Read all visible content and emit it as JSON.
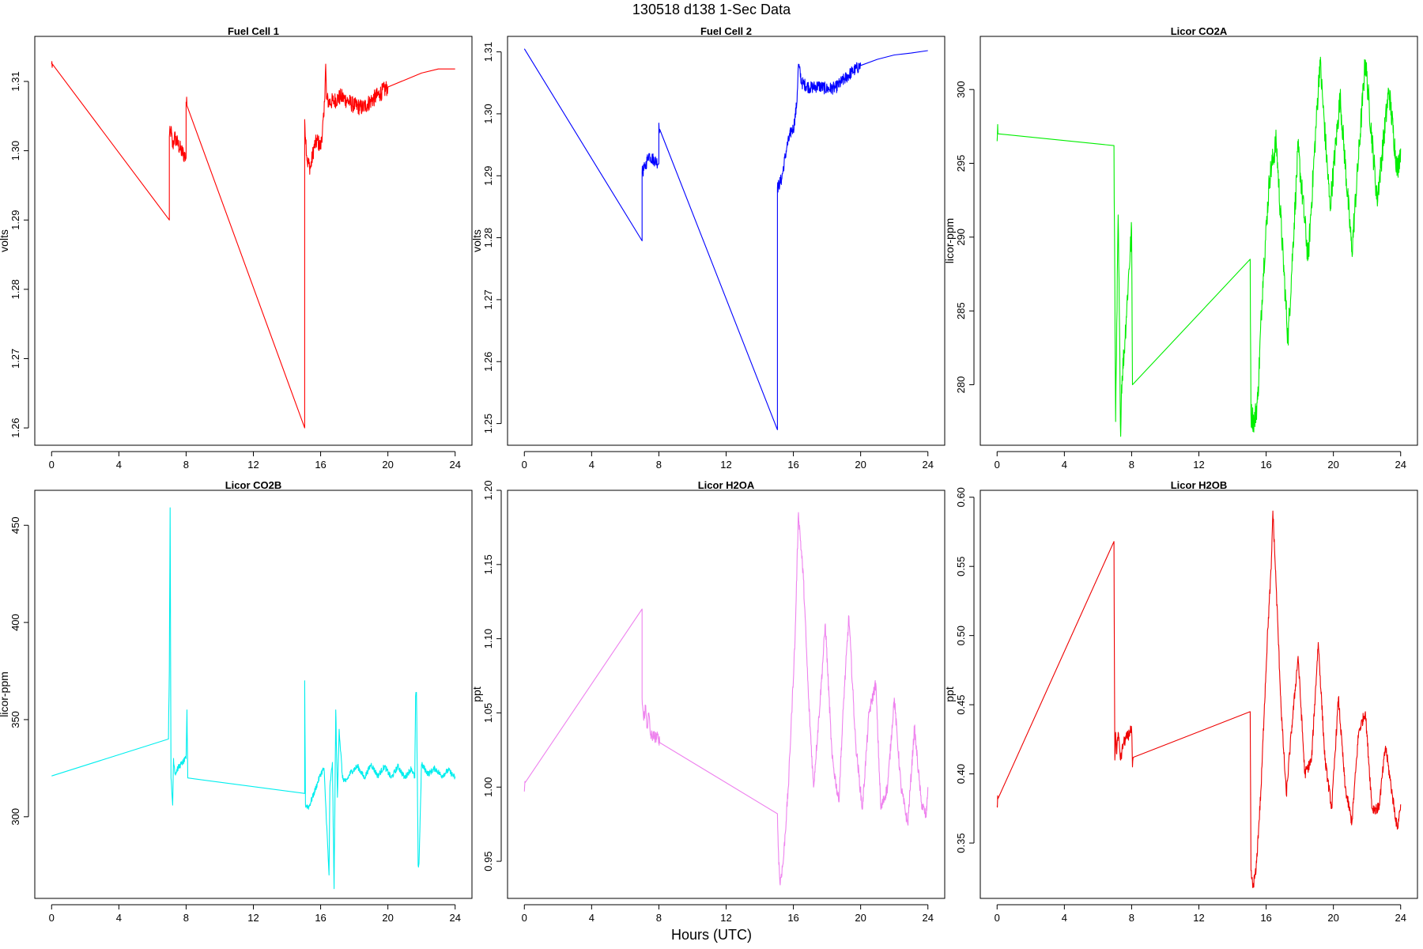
{
  "page": {
    "title": "130518   d138   1-Sec Data",
    "xlabel": "Hours (UTC)"
  },
  "chart_data": [
    {
      "type": "line",
      "title": "Fuel Cell 1",
      "ylabel": "volts",
      "xlim": [
        -1,
        25
      ],
      "ylim": [
        1.2575,
        1.3165
      ],
      "xticks": [
        "0",
        "4",
        "8",
        "12",
        "16",
        "20",
        "24"
      ],
      "yticks": [
        "1.26",
        "1.27",
        "1.28",
        "1.29",
        "1.30",
        "1.31"
      ],
      "color": "#ff0000",
      "series": [
        {
          "x": [
            0,
            0.05,
            7.0,
            7.0,
            7.1,
            7.2,
            7.3,
            7.5,
            7.7,
            8.0,
            8.0,
            8.05,
            15.05,
            15.05,
            15.2,
            15.4,
            15.6,
            15.8,
            16.0,
            16.2,
            16.3,
            16.35,
            16.5,
            16.8,
            17.2,
            17.6,
            18.0,
            18.5,
            19.0,
            19.5,
            20.0,
            21.0,
            22.0,
            23.0,
            24.0
          ],
          "y": [
            1.3125,
            1.3125,
            1.29,
            1.302,
            1.303,
            1.3005,
            1.302,
            1.301,
            1.3,
            1.299,
            1.307,
            1.3065,
            1.26,
            1.3045,
            1.2985,
            1.2975,
            1.3005,
            1.3015,
            1.3005,
            1.305,
            1.3125,
            1.3075,
            1.307,
            1.3072,
            1.3078,
            1.3072,
            1.3065,
            1.3062,
            1.3072,
            1.3082,
            1.3092,
            1.3102,
            1.3112,
            1.3118,
            1.3118
          ],
          "noise": 0.0012
        }
      ]
    },
    {
      "type": "line",
      "title": "Fuel Cell 2",
      "ylabel": "volts",
      "xlim": [
        -1,
        25
      ],
      "ylim": [
        1.2465,
        1.3125
      ],
      "xticks": [
        "0",
        "4",
        "8",
        "12",
        "16",
        "20",
        "24"
      ],
      "yticks": [
        "1.25",
        "1.26",
        "1.27",
        "1.28",
        "1.29",
        "1.30",
        "1.31"
      ],
      "color": "#0000ff",
      "series": [
        {
          "x": [
            0,
            7.0,
            7.0,
            7.2,
            7.4,
            7.5,
            8.0,
            8.0,
            8.05,
            15.05,
            15.05,
            15.3,
            15.6,
            15.9,
            16.0,
            16.2,
            16.3,
            16.5,
            17.0,
            17.5,
            18.0,
            18.5,
            19.0,
            19.5,
            20.0,
            21.0,
            22.0,
            23.0,
            24.0
          ],
          "y": [
            1.3105,
            1.2795,
            1.2905,
            1.2915,
            1.2935,
            1.293,
            1.292,
            1.2985,
            1.2975,
            1.249,
            1.288,
            1.2895,
            1.2945,
            1.2975,
            1.2975,
            1.3015,
            1.308,
            1.305,
            1.3042,
            1.3045,
            1.304,
            1.3042,
            1.3055,
            1.3068,
            1.3078,
            1.3088,
            1.3095,
            1.3098,
            1.3102
          ],
          "noise": 0.001
        }
      ]
    },
    {
      "type": "line",
      "title": "Licor CO2A",
      "ylabel": "licor-ppm",
      "xlim": [
        -1,
        25
      ],
      "ylim": [
        275.9,
        303.6
      ],
      "xticks": [
        "0",
        "4",
        "8",
        "12",
        "16",
        "20",
        "24"
      ],
      "yticks": [
        "280",
        "285",
        "290",
        "295",
        "300"
      ],
      "color": "#00ee00",
      "series": [
        {
          "x": [
            0,
            0.05,
            6.95,
            7.05,
            7.1,
            7.2,
            7.35,
            7.4,
            7.6,
            7.8,
            8.0,
            8.05,
            15.05,
            15.1,
            15.3,
            15.5,
            15.8,
            16.2,
            16.6,
            17.3,
            17.9,
            18.5,
            19.2,
            19.8,
            20.4,
            21.1,
            21.9,
            22.6,
            23.3,
            23.8,
            24.0
          ],
          "y": [
            296.5,
            297,
            296.2,
            277.5,
            282,
            291.5,
            276.5,
            280,
            283,
            287,
            290.5,
            280,
            288.5,
            278,
            277.5,
            279,
            287,
            294,
            296.5,
            283,
            296,
            288.5,
            302,
            292,
            299.5,
            289,
            302,
            292.5,
            300,
            294.5,
            296
          ],
          "noise": 0.9
        }
      ]
    },
    {
      "type": "line",
      "title": "Licor CO2B",
      "ylabel": "licor-ppm",
      "xlim": [
        -1,
        25
      ],
      "ylim": [
        258,
        468
      ],
      "xticks": [
        "0",
        "4",
        "8",
        "12",
        "16",
        "20",
        "24"
      ],
      "yticks": [
        "300",
        "350",
        "400",
        "450"
      ],
      "color": "#00eeee",
      "series": [
        {
          "x": [
            0,
            6.95,
            7.0,
            7.05,
            7.1,
            7.2,
            7.25,
            7.35,
            7.5,
            8.0,
            8.05,
            8.1,
            15.05,
            15.05,
            15.1,
            15.3,
            15.6,
            16.0,
            16.2,
            16.5,
            16.55,
            16.7,
            16.8,
            16.9,
            17.0,
            17.1,
            17.3,
            17.5,
            17.8,
            18.2,
            18.6,
            19.0,
            19.4,
            19.8,
            20.2,
            20.6,
            21.0,
            21.4,
            21.6,
            21.65,
            21.7,
            21.8,
            21.85,
            22.0,
            22.4,
            22.8,
            23.2,
            23.6,
            24.0
          ],
          "y": [
            321,
            340,
            375,
            459,
            320,
            306,
            330,
            322,
            325,
            330,
            355,
            320,
            312,
            370,
            306,
            305,
            312,
            322,
            325,
            270,
            315,
            328,
            263,
            355,
            310,
            345,
            320,
            318,
            323,
            326,
            320,
            327,
            321,
            326,
            320,
            326,
            320,
            325,
            320,
            362,
            364,
            275,
            276,
            327,
            322,
            325,
            321,
            324,
            320
          ],
          "noise": 1.5
        }
      ]
    },
    {
      "type": "line",
      "title": "Licor H2OA",
      "ylabel": "ppt",
      "xlim": [
        -1,
        25
      ],
      "ylim": [
        0.925,
        1.2
      ],
      "xticks": [
        "0",
        "4",
        "8",
        "12",
        "16",
        "20",
        "24"
      ],
      "yticks": [
        "0.95",
        "1.00",
        "1.05",
        "1.10",
        "1.15",
        "1.20"
      ],
      "color": "#ee82ee",
      "series": [
        {
          "x": [
            0,
            0.05,
            7.0,
            7.0,
            7.1,
            7.2,
            7.3,
            7.4,
            7.5,
            8.0,
            8.05,
            15.05,
            15.1,
            15.2,
            15.4,
            15.7,
            15.9,
            16.1,
            16.3,
            16.6,
            16.9,
            17.2,
            17.6,
            17.9,
            18.3,
            18.7,
            19.0,
            19.3,
            19.7,
            20.1,
            20.5,
            20.9,
            21.2,
            21.6,
            22.0,
            22.4,
            22.8,
            23.2,
            23.6,
            23.9,
            24.0
          ],
          "y": [
            0.997,
            1.003,
            1.12,
            1.06,
            1.045,
            1.055,
            1.04,
            1.05,
            1.035,
            1.033,
            1.03,
            0.982,
            0.96,
            0.935,
            0.95,
            1.0,
            1.05,
            1.1,
            1.185,
            1.14,
            1.06,
            1.0,
            1.06,
            1.11,
            1.02,
            0.99,
            1.06,
            1.115,
            1.03,
            0.985,
            1.05,
            1.07,
            0.985,
            1.0,
            1.06,
            1.0,
            0.975,
            1.04,
            0.99,
            0.98,
            1.0
          ],
          "noise": 0.004
        }
      ]
    },
    {
      "type": "line",
      "title": "Licor H2OB",
      "ylabel": "ppt",
      "xlim": [
        -1,
        25
      ],
      "ylim": [
        0.31,
        0.605
      ],
      "xticks": [
        "0",
        "4",
        "8",
        "12",
        "16",
        "20",
        "24"
      ],
      "yticks": [
        "0.35",
        "0.40",
        "0.45",
        "0.50",
        "0.55",
        "0.60"
      ],
      "color": "#ee0000",
      "series": [
        {
          "x": [
            0,
            0.05,
            6.95,
            7.0,
            7.05,
            7.1,
            7.2,
            7.35,
            7.5,
            8.0,
            8.05,
            8.1,
            15.05,
            15.1,
            15.2,
            15.4,
            15.7,
            15.9,
            16.1,
            16.3,
            16.4,
            16.6,
            16.9,
            17.2,
            17.5,
            17.9,
            18.3,
            18.7,
            19.1,
            19.5,
            19.9,
            20.3,
            20.7,
            21.1,
            21.5,
            21.9,
            22.3,
            22.7,
            23.1,
            23.5,
            23.8,
            24.0
          ],
          "y": [
            0.377,
            0.382,
            0.568,
            0.41,
            0.43,
            0.415,
            0.43,
            0.41,
            0.422,
            0.432,
            0.405,
            0.412,
            0.445,
            0.33,
            0.318,
            0.33,
            0.39,
            0.45,
            0.505,
            0.548,
            0.59,
            0.535,
            0.445,
            0.385,
            0.43,
            0.485,
            0.4,
            0.41,
            0.495,
            0.41,
            0.375,
            0.455,
            0.39,
            0.365,
            0.43,
            0.445,
            0.375,
            0.375,
            0.42,
            0.385,
            0.36,
            0.378
          ],
          "noise": 0.004
        }
      ]
    }
  ]
}
